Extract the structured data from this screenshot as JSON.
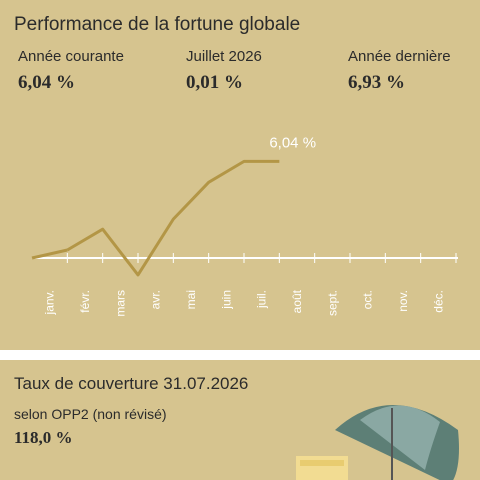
{
  "header": {
    "title": "Performance de la fortune globale"
  },
  "stats": [
    {
      "label": "Année courante",
      "value": "6,04 %"
    },
    {
      "label": "Juillet 2026",
      "value": "0,01 %"
    },
    {
      "label": "Année dernière",
      "value": "6,93 %"
    }
  ],
  "chart_data": {
    "type": "line",
    "categories": [
      "janv.",
      "févr.",
      "mars",
      "avr.",
      "mai",
      "juin",
      "juil.",
      "août",
      "sept.",
      "oct.",
      "nov.",
      "déc."
    ],
    "values": [
      0.5,
      1.8,
      -1.06,
      2.43,
      4.73,
      6.04,
      6.04,
      null,
      null,
      null,
      null,
      null
    ],
    "value_labels": [
      null,
      null,
      null,
      null,
      null,
      null,
      "6,04 %",
      null,
      null,
      null,
      null,
      null
    ],
    "color": "#b39646",
    "ylim": [
      -1.5,
      7.5
    ]
  },
  "coverage": {
    "title": "Taux de couverture 31.07.2026",
    "label": "selon OPP2 (non révisé)",
    "value": "118,0 %"
  }
}
